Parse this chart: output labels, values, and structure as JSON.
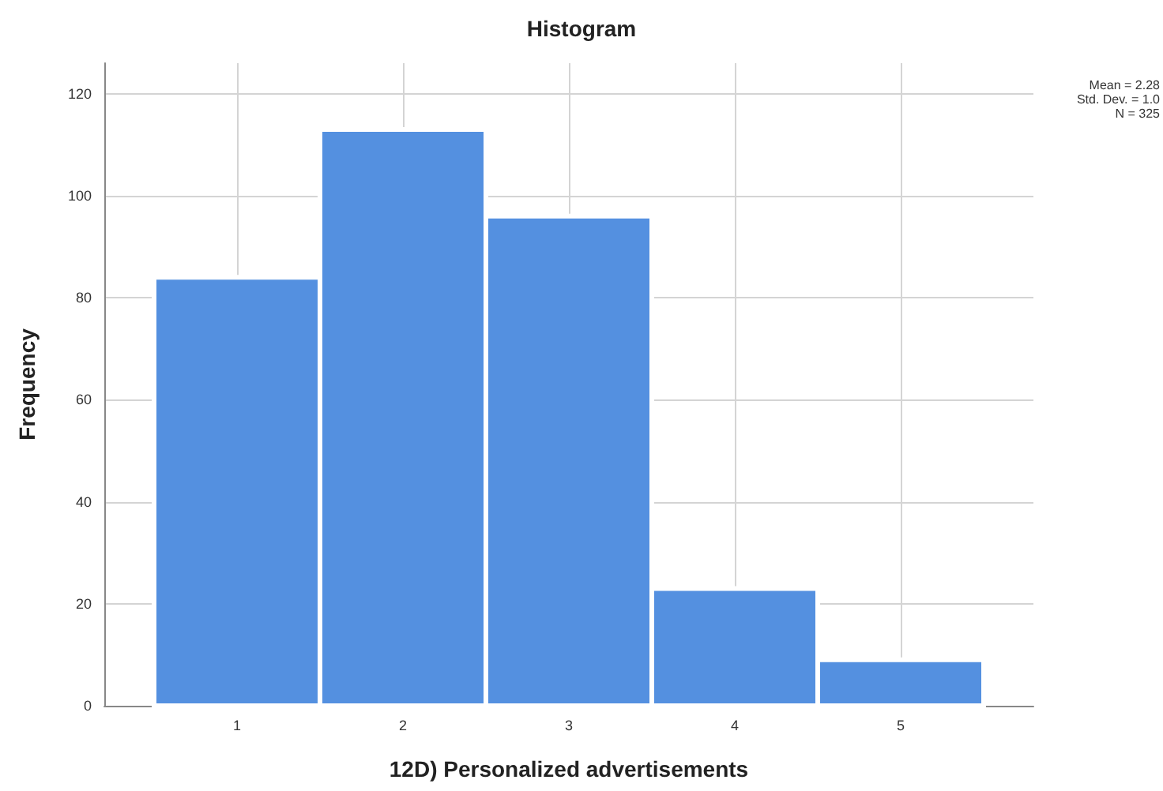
{
  "chart_data": {
    "type": "histogram",
    "title": "Histogram",
    "xlabel": "12D) Personalized advertisements",
    "ylabel": "Frequency",
    "bins": [
      0.5,
      1.5,
      2.5,
      3.5,
      4.5,
      5.5
    ],
    "values": [
      84,
      113,
      96,
      23,
      9
    ],
    "color": "#5490e0",
    "xlim": [
      0.2,
      5.8
    ],
    "xticks": [
      1,
      2,
      3,
      4,
      5
    ],
    "ylim": [
      0,
      126
    ],
    "yticks": [
      0,
      20,
      40,
      60,
      80,
      100,
      120
    ],
    "grid": true,
    "annotations": [
      "Mean = 2.28",
      "Std. Dev. = 1.0",
      "N = 325"
    ]
  }
}
